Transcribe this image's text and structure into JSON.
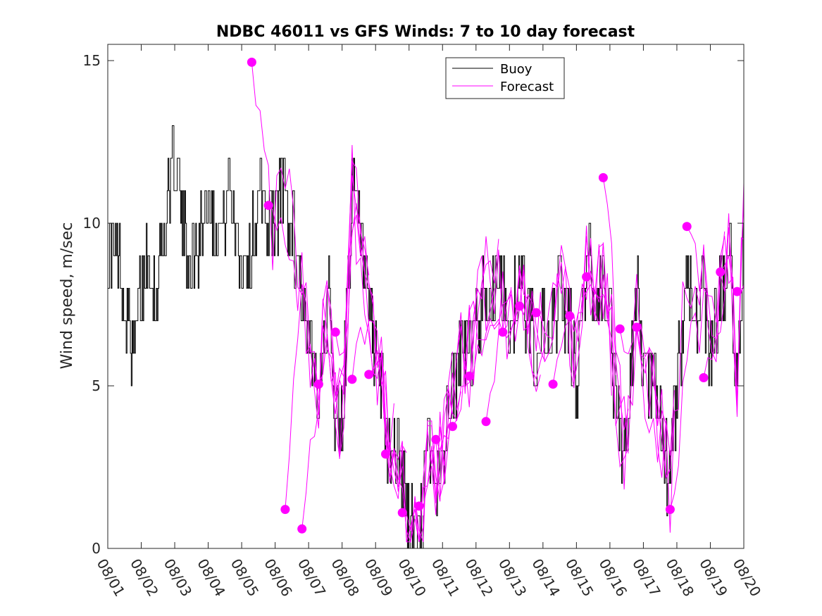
{
  "chart_data": {
    "type": "line",
    "title": "NDBC 46011 vs GFS Winds: 7 to 10 day forecast",
    "xlabel": "",
    "ylabel": "Wind speed, m/sec",
    "xlim": [
      0,
      19
    ],
    "ylim": [
      0,
      15.5
    ],
    "x_tick_values": [
      0,
      1,
      2,
      3,
      4,
      5,
      6,
      7,
      8,
      9,
      10,
      11,
      12,
      13,
      14,
      15,
      16,
      17,
      18,
      19
    ],
    "x_tick_labels": [
      "08/01",
      "08/02",
      "08/03",
      "08/04",
      "08/05",
      "08/06",
      "08/07",
      "08/08",
      "08/09",
      "08/10",
      "08/11",
      "08/12",
      "08/13",
      "08/14",
      "08/15",
      "08/16",
      "08/17",
      "08/18",
      "08/19",
      "08/20"
    ],
    "y_tick_values": [
      0,
      5,
      10,
      15
    ],
    "y_tick_labels": [
      "0",
      "5",
      "10",
      "15"
    ],
    "legend": {
      "location": "top-center",
      "entries": [
        "Buoy",
        "Forecast"
      ]
    },
    "colors": {
      "buoy": "#000000",
      "forecast": "#ff00ff",
      "axes": "#262626"
    },
    "buoy_anchor_points": {
      "x": [
        0.0,
        0.3,
        0.6,
        0.8,
        1.0,
        1.2,
        1.4,
        1.6,
        1.8,
        2.0,
        2.2,
        2.4,
        2.6,
        2.8,
        3.0,
        3.2,
        3.4,
        3.6,
        3.8,
        4.0,
        4.2,
        4.4,
        4.6,
        4.8,
        5.0,
        5.2,
        5.5,
        5.8,
        6.0,
        6.3,
        6.6,
        6.8,
        7.0,
        7.3,
        7.6,
        7.8,
        8.0,
        8.2,
        8.4,
        8.6,
        8.8,
        9.0,
        9.3,
        9.6,
        9.8,
        10.0,
        10.3,
        10.6,
        10.8,
        11.0,
        11.3,
        11.6,
        11.8,
        12.0,
        12.3,
        12.6,
        12.8,
        13.0,
        13.2,
        13.5,
        13.8,
        14.0,
        14.3,
        14.6,
        14.8,
        15.0,
        15.2,
        15.5,
        15.8,
        16.0,
        16.3,
        16.6,
        16.8,
        17.0,
        17.3,
        17.6,
        17.8,
        18.0,
        18.3,
        18.6,
        18.8,
        19.0
      ],
      "y": [
        9,
        9,
        7,
        6,
        8,
        9,
        8,
        9,
        11,
        12,
        10,
        9,
        9,
        10,
        11,
        10,
        10,
        11,
        10,
        9,
        9,
        10,
        11,
        10,
        10,
        11,
        10,
        8,
        6,
        5,
        8,
        4,
        4,
        11,
        9,
        7,
        6,
        5,
        3,
        3,
        2,
        1,
        0,
        3,
        2,
        3,
        5,
        6,
        6,
        7,
        8,
        8,
        8,
        7,
        8,
        7,
        6,
        7,
        6,
        8,
        7,
        5,
        9,
        8,
        8,
        7,
        4,
        3,
        8,
        5,
        5,
        3,
        2,
        5,
        8,
        7,
        8,
        6,
        8,
        9,
        5,
        10
      ]
    },
    "forecast_markers": {
      "x": [
        4.3,
        4.8,
        5.3,
        5.8,
        6.3,
        6.8,
        7.3,
        7.8,
        8.3,
        8.8,
        9.3,
        9.8,
        10.3,
        10.8,
        11.3,
        11.8,
        12.3,
        12.8,
        13.3,
        13.8,
        14.3,
        14.8,
        15.3,
        15.8,
        16.8,
        17.3,
        17.8,
        18.3,
        18.8
      ],
      "y": [
        14.95,
        10.55,
        1.2,
        0.6,
        5.05,
        6.65,
        5.2,
        5.35,
        2.9,
        1.1,
        1.3,
        3.35,
        3.75,
        5.3,
        3.9,
        6.65,
        7.45,
        7.25,
        5.05,
        7.15,
        8.35,
        11.4,
        6.75,
        6.8,
        1.2,
        9.9,
        5.25,
        8.5,
        7.9
      ]
    }
  }
}
